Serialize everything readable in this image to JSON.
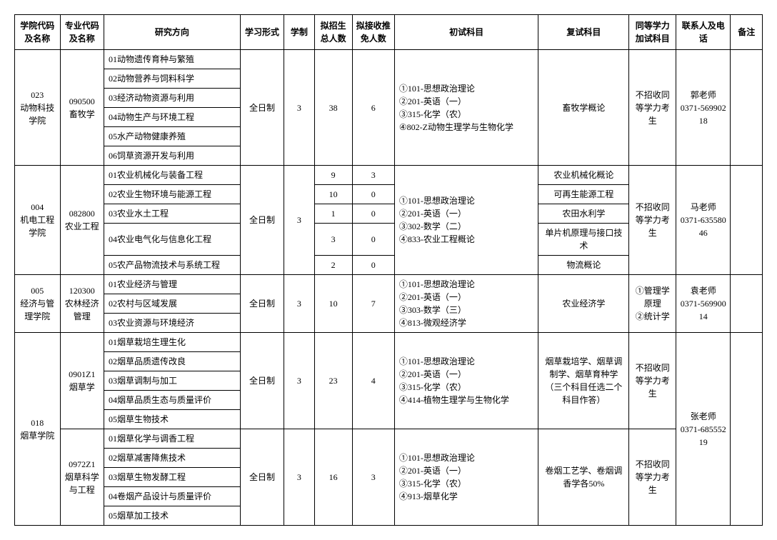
{
  "headers": {
    "h1": "学院代码及名称",
    "h2": "专业代码及名称",
    "h3": "研究方向",
    "h4": "学习形式",
    "h5": "学制",
    "h6": "拟招生总人数",
    "h7": "拟接收推免人数",
    "h8": "初试科目",
    "h9": "复试科目",
    "h10": "同等学力加试科目",
    "h11": "联系人及电话",
    "h12": "备注"
  },
  "g1": {
    "college": "023\n动物科技学院",
    "major": "090500\n畜牧学",
    "dirs": {
      "d1": "01动物遗传育种与繁殖",
      "d2": "02动物营养与饲料科学",
      "d3": "03经济动物资源与利用",
      "d4": "04动物生产与环境工程",
      "d5": "05水产动物健康养殖",
      "d6": "06饲草资源开发与利用"
    },
    "mode": "全日制",
    "years": "3",
    "total": "38",
    "rec": "6",
    "init": "①101-思想政治理论\n②201-英语（一）\n③315-化学（农）\n④802-Z动物生理学与生物化学",
    "retest": "畜牧学概论",
    "extra": "不招收同等学力考生",
    "contact": "郭老师\n0371-56990218"
  },
  "g2": {
    "college": "004\n机电工程学院",
    "major": "082800\n农业工程",
    "dirs": {
      "d1": "01农业机械化与装备工程",
      "d2": "02农业生物环境与能源工程",
      "d3": "03农业水土工程",
      "d4": "04农业电气化与信息化工程",
      "d5": "05农产品物流技术与系统工程"
    },
    "mode": "全日制",
    "years": "3",
    "totals": {
      "t1": "9",
      "t2": "10",
      "t3": "1",
      "t4": "3",
      "t5": "2"
    },
    "recs": {
      "r1": "3",
      "r2": "0",
      "r3": "0",
      "r4": "0",
      "r5": "0"
    },
    "init": "①101-思想政治理论\n②201-英语（一）\n③302-数学（二）\n④833-农业工程概论",
    "retests": {
      "r1": "农业机械化概论",
      "r2": "可再生能源工程",
      "r3": "农田水利学",
      "r4": "单片机原理与接口技术",
      "r5": "物流概论"
    },
    "extra": "不招收同等学力考生",
    "contact": "马老师\n0371-63558046"
  },
  "g3": {
    "college": "005\n经济与管理学院",
    "major": "120300\n农林经济管理",
    "dirs": {
      "d1": "01农业经济与管理",
      "d2": "02农村与区域发展",
      "d3": "03农业资源与环境经济"
    },
    "mode": "全日制",
    "years": "3",
    "total": "10",
    "rec": "7",
    "init": "①101-思想政治理论\n②201-英语（一）\n③303-数学（三）\n④813-微观经济学",
    "retest": "农业经济学",
    "extra": "①管理学原理\n②统计学",
    "contact": "袁老师\n0371-56990014"
  },
  "g4": {
    "college": "018\n烟草学院",
    "major1": "0901Z1\n烟草学",
    "major2": "0972Z1\n烟草科学与工程",
    "dirs1": {
      "d1": "01烟草栽培生理生化",
      "d2": "02烟草品质遗传改良",
      "d3": "03烟草调制与加工",
      "d4": "04烟草品质生态与质量评价",
      "d5": "05烟草生物技术"
    },
    "dirs2": {
      "d1": "01烟草化学与调香工程",
      "d2": "02烟草减害降焦技术",
      "d3": "03烟草生物发酵工程",
      "d4": "04卷烟产品设计与质量评价",
      "d5": "05烟草加工技术"
    },
    "mode1": "全日制",
    "years1": "3",
    "total1": "23",
    "rec1": "4",
    "init1": "①101-思想政治理论\n②201-英语（一）\n③315-化学（农）\n④414-植物生理学与生物化学",
    "retest1": "烟草栽培学、烟草调制学、烟草育种学（三个科目任选二个科目作答）",
    "extra1": "不招收同等学力考生",
    "mode2": "全日制",
    "years2": "3",
    "total2": "16",
    "rec2": "3",
    "init2": "①101-思想政治理论\n②201-英语（一）\n③315-化学（农）\n④913-烟草化学",
    "retest2": "卷烟工艺学、卷烟调香学各50%",
    "extra2": "不招收同等学力考生",
    "contact": "张老师\n0371-68555219"
  }
}
